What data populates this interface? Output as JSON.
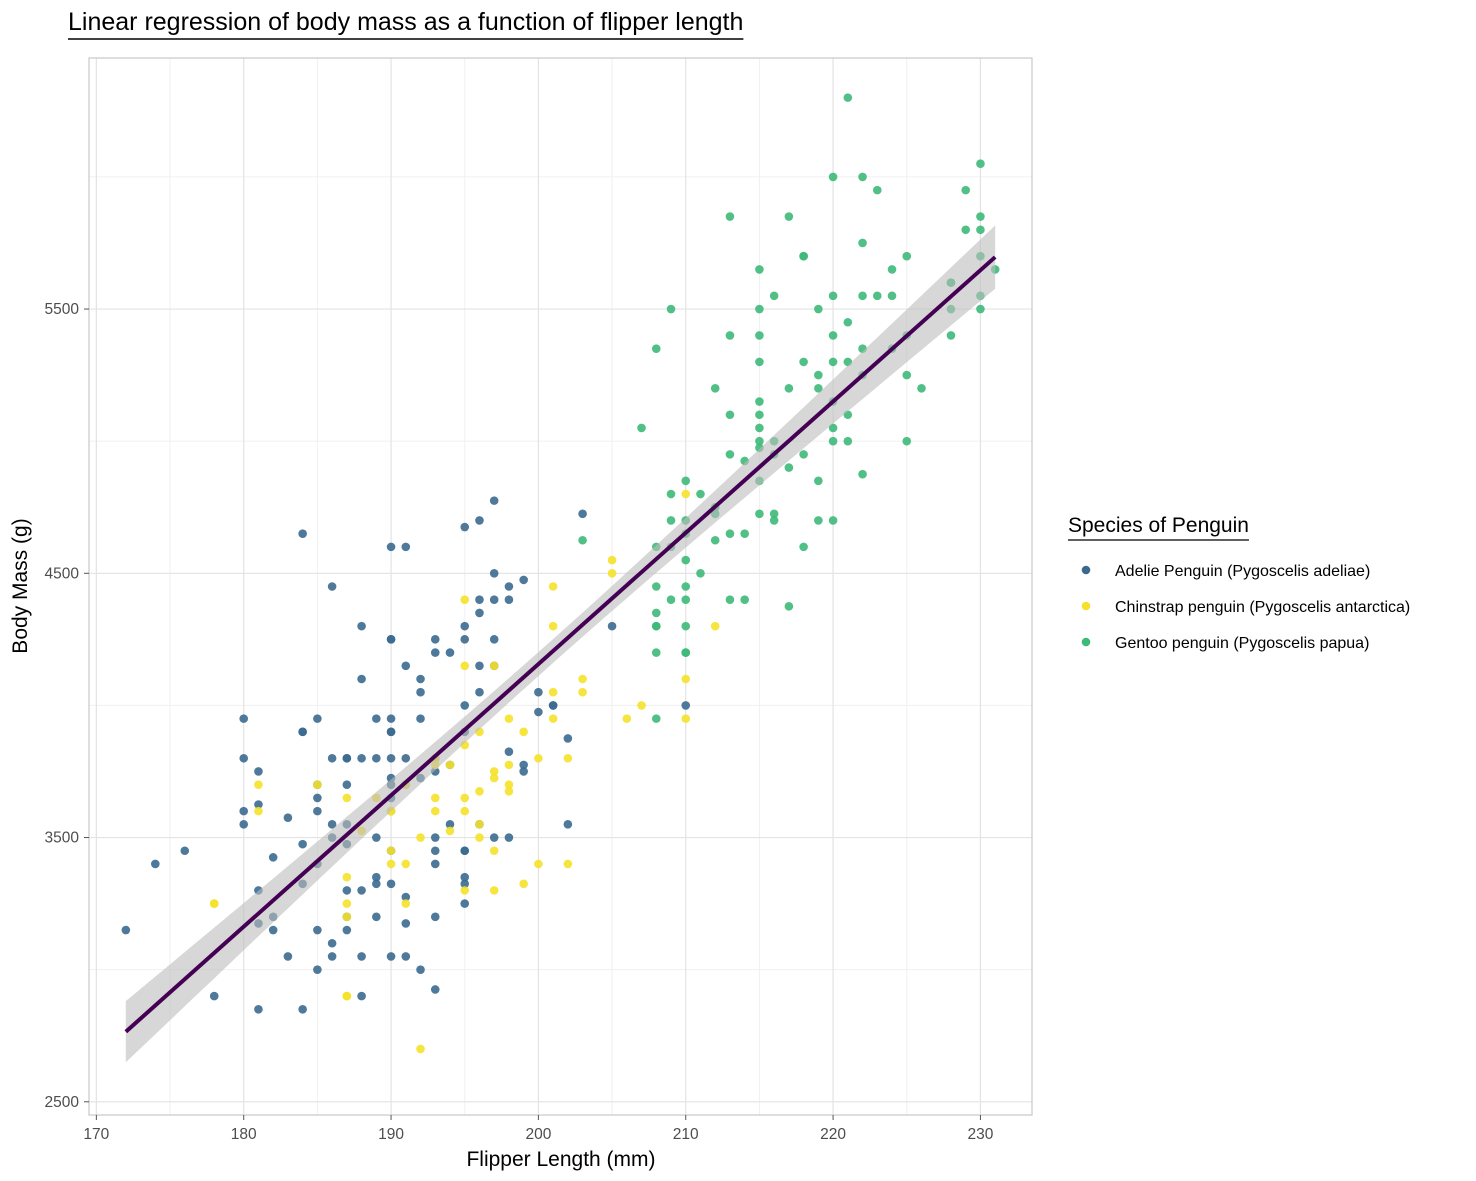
{
  "chart_data": {
    "type": "scatter",
    "title": "Linear regression of body mass as a function of flipper length",
    "xlabel": "Flipper Length (mm)",
    "ylabel": "Body Mass (g)",
    "xlim": [
      169.5,
      233.5
    ],
    "ylim": [
      2450,
      6450
    ],
    "x_ticks": [
      170,
      180,
      190,
      200,
      210,
      220,
      230
    ],
    "y_ticks": [
      2500,
      3500,
      4500,
      5500
    ],
    "grid": true,
    "legend": {
      "title": "Species of Penguin",
      "position": "right"
    },
    "colors": {
      "adelie": "#3b6a8f",
      "chinstrap": "#f5e12a",
      "gentoo": "#3db97a",
      "fit_line": "#440154",
      "confidence_band": "#bdbdbd"
    },
    "series": [
      {
        "name": "Adelie Penguin (Pygoscelis adeliae)",
        "color": "#3b6a8f",
        "points": [
          [
            172,
            3150
          ],
          [
            174,
            3400
          ],
          [
            176,
            3450
          ],
          [
            178,
            2900
          ],
          [
            180,
            3950
          ],
          [
            180,
            3800
          ],
          [
            180,
            3600
          ],
          [
            180,
            3550
          ],
          [
            181,
            3750
          ],
          [
            181,
            3625
          ],
          [
            181,
            3300
          ],
          [
            181,
            3175
          ],
          [
            181,
            2850
          ],
          [
            182,
            3425
          ],
          [
            182,
            3200
          ],
          [
            182,
            3150
          ],
          [
            183,
            3575
          ],
          [
            183,
            3050
          ],
          [
            184,
            3900
          ],
          [
            184,
            3900
          ],
          [
            184,
            4650
          ],
          [
            184,
            3475
          ],
          [
            184,
            3325
          ],
          [
            184,
            2850
          ],
          [
            185,
            3950
          ],
          [
            185,
            3700
          ],
          [
            185,
            3650
          ],
          [
            185,
            3600
          ],
          [
            185,
            3150
          ],
          [
            185,
            3000
          ],
          [
            185,
            3400
          ],
          [
            186,
            4450
          ],
          [
            186,
            3800
          ],
          [
            186,
            3550
          ],
          [
            186,
            3500
          ],
          [
            186,
            3100
          ],
          [
            186,
            3050
          ],
          [
            187,
            3800
          ],
          [
            187,
            3800
          ],
          [
            187,
            3700
          ],
          [
            187,
            3550
          ],
          [
            187,
            3475
          ],
          [
            187,
            3300
          ],
          [
            187,
            3200
          ],
          [
            187,
            3150
          ],
          [
            188,
            4300
          ],
          [
            188,
            4100
          ],
          [
            188,
            3800
          ],
          [
            188,
            3300
          ],
          [
            188,
            3050
          ],
          [
            188,
            2900
          ],
          [
            189,
            3950
          ],
          [
            189,
            3800
          ],
          [
            189,
            3500
          ],
          [
            189,
            3350
          ],
          [
            189,
            3325
          ],
          [
            189,
            3200
          ],
          [
            190,
            4600
          ],
          [
            190,
            4250
          ],
          [
            190,
            4250
          ],
          [
            190,
            3950
          ],
          [
            190,
            3900
          ],
          [
            190,
            3900
          ],
          [
            190,
            3800
          ],
          [
            190,
            3725
          ],
          [
            190,
            3700
          ],
          [
            190,
            3650
          ],
          [
            190,
            3600
          ],
          [
            190,
            3450
          ],
          [
            190,
            3325
          ],
          [
            190,
            3050
          ],
          [
            191,
            4600
          ],
          [
            191,
            4150
          ],
          [
            191,
            3800
          ],
          [
            191,
            3700
          ],
          [
            191,
            3275
          ],
          [
            191,
            3175
          ],
          [
            191,
            3050
          ],
          [
            192,
            4100
          ],
          [
            192,
            4050
          ],
          [
            192,
            3950
          ],
          [
            192,
            3725
          ],
          [
            192,
            3000
          ],
          [
            193,
            4250
          ],
          [
            193,
            4200
          ],
          [
            193,
            3800
          ],
          [
            193,
            3750
          ],
          [
            193,
            3500
          ],
          [
            193,
            3450
          ],
          [
            193,
            3400
          ],
          [
            193,
            3200
          ],
          [
            193,
            2925
          ],
          [
            194,
            4200
          ],
          [
            194,
            3775
          ],
          [
            194,
            3550
          ],
          [
            195,
            4675
          ],
          [
            195,
            4300
          ],
          [
            195,
            4250
          ],
          [
            195,
            4000
          ],
          [
            195,
            3900
          ],
          [
            195,
            3450
          ],
          [
            195,
            3450
          ],
          [
            195,
            3350
          ],
          [
            195,
            3325
          ],
          [
            195,
            3250
          ],
          [
            196,
            4700
          ],
          [
            196,
            4400
          ],
          [
            196,
            4350
          ],
          [
            196,
            4150
          ],
          [
            196,
            4050
          ],
          [
            196,
            3550
          ],
          [
            197,
            4775
          ],
          [
            197,
            4500
          ],
          [
            197,
            4400
          ],
          [
            197,
            4250
          ],
          [
            197,
            4150
          ],
          [
            197,
            3500
          ],
          [
            198,
            4450
          ],
          [
            198,
            4400
          ],
          [
            198,
            3825
          ],
          [
            198,
            3500
          ],
          [
            199,
            4475
          ],
          [
            199,
            3775
          ],
          [
            199,
            3750
          ],
          [
            200,
            4050
          ],
          [
            200,
            3975
          ],
          [
            201,
            4000
          ],
          [
            201,
            4000
          ],
          [
            202,
            3875
          ],
          [
            202,
            3550
          ],
          [
            203,
            4725
          ],
          [
            205,
            4300
          ],
          [
            210,
            4000
          ]
        ]
      },
      {
        "name": "Chinstrap penguin (Pygoscelis antarctica)",
        "color": "#f5e12a",
        "points": [
          [
            178,
            3250
          ],
          [
            178,
            3250
          ],
          [
            181,
            3700
          ],
          [
            181,
            3600
          ],
          [
            185,
            3700
          ],
          [
            187,
            3650
          ],
          [
            187,
            3350
          ],
          [
            187,
            3250
          ],
          [
            187,
            3200
          ],
          [
            187,
            2900
          ],
          [
            187,
            2900
          ],
          [
            188,
            3525
          ],
          [
            189,
            3650
          ],
          [
            190,
            3600
          ],
          [
            190,
            3450
          ],
          [
            190,
            3400
          ],
          [
            190,
            3600
          ],
          [
            191,
            3700
          ],
          [
            191,
            3400
          ],
          [
            191,
            3250
          ],
          [
            192,
            3500
          ],
          [
            192,
            2700
          ],
          [
            193,
            3800
          ],
          [
            193,
            3775
          ],
          [
            193,
            3650
          ],
          [
            193,
            3600
          ],
          [
            194,
            3775
          ],
          [
            194,
            3525
          ],
          [
            195,
            4400
          ],
          [
            195,
            4150
          ],
          [
            195,
            3850
          ],
          [
            195,
            3650
          ],
          [
            195,
            3600
          ],
          [
            195,
            3300
          ],
          [
            196,
            3900
          ],
          [
            196,
            3675
          ],
          [
            196,
            3550
          ],
          [
            196,
            3500
          ],
          [
            197,
            4150
          ],
          [
            197,
            3750
          ],
          [
            197,
            3725
          ],
          [
            197,
            3450
          ],
          [
            197,
            3300
          ],
          [
            198,
            3950
          ],
          [
            198,
            3775
          ],
          [
            198,
            3700
          ],
          [
            198,
            3675
          ],
          [
            199,
            3900
          ],
          [
            199,
            3325
          ],
          [
            200,
            3800
          ],
          [
            200,
            3400
          ],
          [
            201,
            4450
          ],
          [
            201,
            4300
          ],
          [
            201,
            4050
          ],
          [
            201,
            3950
          ],
          [
            202,
            3800
          ],
          [
            202,
            3400
          ],
          [
            203,
            4100
          ],
          [
            203,
            4050
          ],
          [
            205,
            4550
          ],
          [
            205,
            4500
          ],
          [
            206,
            3950
          ],
          [
            207,
            4000
          ],
          [
            210,
            4800
          ],
          [
            210,
            4100
          ],
          [
            210,
            3950
          ],
          [
            212,
            4300
          ]
        ]
      },
      {
        "name": "Gentoo penguin (Pygoscelis papua)",
        "color": "#3db97a",
        "points": [
          [
            203,
            4625
          ],
          [
            207,
            5050
          ],
          [
            208,
            5350
          ],
          [
            208,
            4600
          ],
          [
            208,
            4450
          ],
          [
            208,
            4350
          ],
          [
            208,
            4300
          ],
          [
            208,
            4300
          ],
          [
            208,
            4200
          ],
          [
            208,
            3950
          ],
          [
            209,
            5500
          ],
          [
            209,
            4800
          ],
          [
            209,
            4700
          ],
          [
            209,
            4600
          ],
          [
            209,
            4400
          ],
          [
            210,
            4850
          ],
          [
            210,
            4700
          ],
          [
            210,
            4650
          ],
          [
            210,
            4550
          ],
          [
            210,
            4450
          ],
          [
            210,
            4400
          ],
          [
            210,
            4300
          ],
          [
            210,
            4200
          ],
          [
            210,
            4200
          ],
          [
            211,
            4800
          ],
          [
            211,
            4500
          ],
          [
            212,
            5200
          ],
          [
            212,
            4750
          ],
          [
            212,
            4725
          ],
          [
            212,
            4625
          ],
          [
            213,
            5850
          ],
          [
            213,
            5400
          ],
          [
            213,
            5100
          ],
          [
            213,
            4950
          ],
          [
            213,
            4650
          ],
          [
            213,
            4400
          ],
          [
            214,
            4925
          ],
          [
            214,
            4650
          ],
          [
            214,
            4400
          ],
          [
            215,
            5650
          ],
          [
            215,
            5500
          ],
          [
            215,
            5400
          ],
          [
            215,
            5300
          ],
          [
            215,
            5150
          ],
          [
            215,
            5100
          ],
          [
            215,
            5050
          ],
          [
            215,
            5000
          ],
          [
            215,
            4975
          ],
          [
            215,
            4850
          ],
          [
            215,
            4725
          ],
          [
            216,
            5550
          ],
          [
            216,
            5000
          ],
          [
            216,
            4950
          ],
          [
            216,
            4725
          ],
          [
            216,
            4700
          ],
          [
            217,
            5850
          ],
          [
            217,
            5200
          ],
          [
            217,
            4900
          ],
          [
            217,
            4375
          ],
          [
            218,
            5700
          ],
          [
            218,
            5700
          ],
          [
            218,
            5300
          ],
          [
            218,
            4950
          ],
          [
            218,
            4600
          ],
          [
            219,
            5500
          ],
          [
            219,
            5250
          ],
          [
            219,
            5200
          ],
          [
            219,
            4850
          ],
          [
            219,
            4700
          ],
          [
            220,
            6000
          ],
          [
            220,
            5550
          ],
          [
            220,
            5400
          ],
          [
            220,
            5300
          ],
          [
            220,
            5150
          ],
          [
            220,
            5050
          ],
          [
            220,
            5000
          ],
          [
            220,
            4700
          ],
          [
            221,
            6300
          ],
          [
            221,
            5450
          ],
          [
            221,
            5300
          ],
          [
            221,
            5100
          ],
          [
            221,
            5000
          ],
          [
            222,
            6000
          ],
          [
            222,
            5750
          ],
          [
            222,
            5550
          ],
          [
            222,
            5350
          ],
          [
            222,
            5250
          ],
          [
            222,
            4875
          ],
          [
            223,
            5950
          ],
          [
            223,
            5550
          ],
          [
            224,
            5650
          ],
          [
            224,
            5550
          ],
          [
            224,
            5350
          ],
          [
            225,
            5700
          ],
          [
            225,
            5400
          ],
          [
            225,
            5250
          ],
          [
            225,
            5000
          ],
          [
            226,
            5200
          ],
          [
            228,
            5600
          ],
          [
            228,
            5600
          ],
          [
            228,
            5500
          ],
          [
            228,
            5400
          ],
          [
            229,
            5950
          ],
          [
            229,
            5800
          ],
          [
            230,
            6050
          ],
          [
            230,
            5850
          ],
          [
            230,
            5800
          ],
          [
            230,
            5700
          ],
          [
            230,
            5550
          ],
          [
            230,
            5500
          ],
          [
            231,
            5650
          ]
        ]
      }
    ],
    "regression": {
      "type": "linear",
      "x_range": [
        172,
        231
      ],
      "intercept": -5780.8,
      "slope": 49.686,
      "ci_at_ends": 120,
      "ci_at_center": 45,
      "x_center": 200.9
    }
  }
}
